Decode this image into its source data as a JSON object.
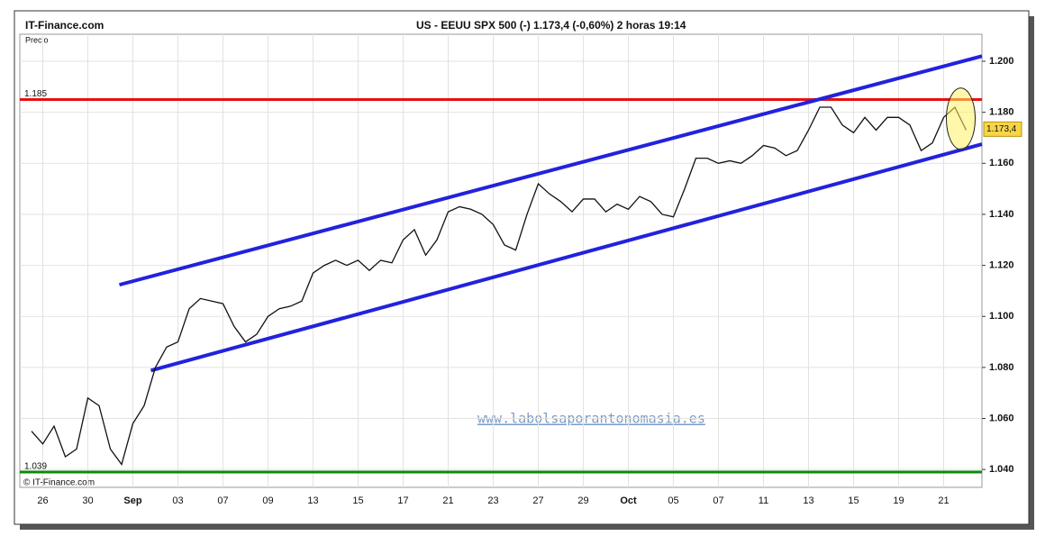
{
  "chart_data": {
    "type": "line",
    "site": "IT-Finance.com",
    "title": "US - EEUU SPX 500 (-)    1.173,4 (-0,60%)    2 horas   19:14",
    "y_label": "Precio",
    "watermark": "www.labolsaporantonomasia.es",
    "copyright": "© IT-Finance.com",
    "categories": [
      null,
      "26",
      null,
      null,
      null,
      "30",
      null,
      null,
      null,
      "Sep",
      null,
      null,
      null,
      "03",
      null,
      null,
      null,
      "07",
      null,
      null,
      null,
      "09",
      null,
      null,
      null,
      "13",
      null,
      null,
      null,
      "15",
      null,
      null,
      null,
      "17",
      null,
      null,
      null,
      "21",
      null,
      null,
      null,
      "23",
      null,
      null,
      null,
      "27",
      null,
      null,
      null,
      "29",
      null,
      null,
      null,
      "Oct",
      null,
      null,
      null,
      "05",
      null,
      null,
      null,
      "07",
      null,
      null,
      null,
      "11",
      null,
      null,
      null,
      "13",
      null,
      null,
      null,
      "15",
      null,
      null,
      null,
      "19",
      null,
      null,
      null,
      "21",
      null,
      null
    ],
    "series": [
      {
        "name": "Precio",
        "color": "#111111",
        "values": [
          1.055,
          1.05,
          1.057,
          1.045,
          1.048,
          1.068,
          1.065,
          1.048,
          1.042,
          1.058,
          1.065,
          1.08,
          1.088,
          1.09,
          1.103,
          1.107,
          1.106,
          1.105,
          1.096,
          1.09,
          1.093,
          1.1,
          1.103,
          1.104,
          1.106,
          1.117,
          1.12,
          1.122,
          1.12,
          1.122,
          1.118,
          1.122,
          1.121,
          1.13,
          1.134,
          1.124,
          1.13,
          1.141,
          1.143,
          1.142,
          1.14,
          1.136,
          1.128,
          1.126,
          1.14,
          1.152,
          1.148,
          1.145,
          1.141,
          1.146,
          1.146,
          1.141,
          1.144,
          1.142,
          1.147,
          1.145,
          1.14,
          1.139,
          1.15,
          1.162,
          1.162,
          1.16,
          1.161,
          1.16,
          1.163,
          1.167,
          1.166,
          1.163,
          1.165,
          1.173,
          1.182,
          1.182,
          1.175,
          1.172,
          1.178,
          1.173,
          1.178,
          1.178,
          1.175,
          1.165,
          1.168,
          1.178,
          1.182,
          1.173
        ]
      }
    ],
    "ylim": [
      1.033,
      1.2106
    ],
    "yticks": [
      {
        "value": 1.04,
        "label": "1.040"
      },
      {
        "value": 1.06,
        "label": "1.060"
      },
      {
        "value": 1.08,
        "label": "1.080"
      },
      {
        "value": 1.1,
        "label": "1.100"
      },
      {
        "value": 1.12,
        "label": "1.120"
      },
      {
        "value": 1.14,
        "label": "1.140"
      },
      {
        "value": 1.16,
        "label": "1.160"
      },
      {
        "value": 1.18,
        "label": "1.180"
      },
      {
        "value": 1.2,
        "label": "1.200"
      }
    ],
    "grid": true,
    "hlines": [
      {
        "value": 1.185,
        "label": "1.185",
        "color": "#e81010"
      },
      {
        "value": 1.039,
        "label": "1.039",
        "color": "#0a8a0a"
      }
    ],
    "trendlines": [
      {
        "x": [
          7.8,
          84.4
        ],
        "y": [
          1.1124,
          1.202
        ],
        "color": "#2222dd"
      },
      {
        "x": [
          10.6,
          84.4
        ],
        "y": [
          1.0788,
          1.1675
        ],
        "color": "#2222dd"
      }
    ],
    "last_value": {
      "value": 1.1734,
      "label": "1.173,4"
    }
  }
}
